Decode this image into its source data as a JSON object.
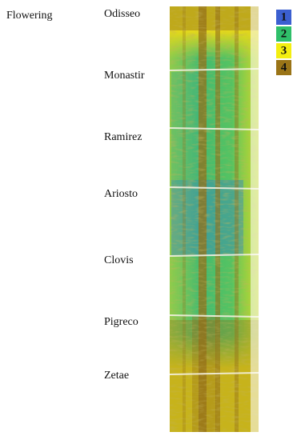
{
  "figure": {
    "stage_label": "Flowering",
    "varieties": [
      "Odisseo",
      "Monastir",
      "Ramirez",
      "Ariosto",
      "Clovis",
      "Pigreco",
      "Zetae"
    ],
    "legend": [
      {
        "label": "1",
        "color": "#3b5fd0"
      },
      {
        "label": "2",
        "color": "#2fbf6a"
      },
      {
        "label": "3",
        "color": "#f3ee10"
      },
      {
        "label": "4",
        "color": "#9a7417"
      }
    ]
  }
}
